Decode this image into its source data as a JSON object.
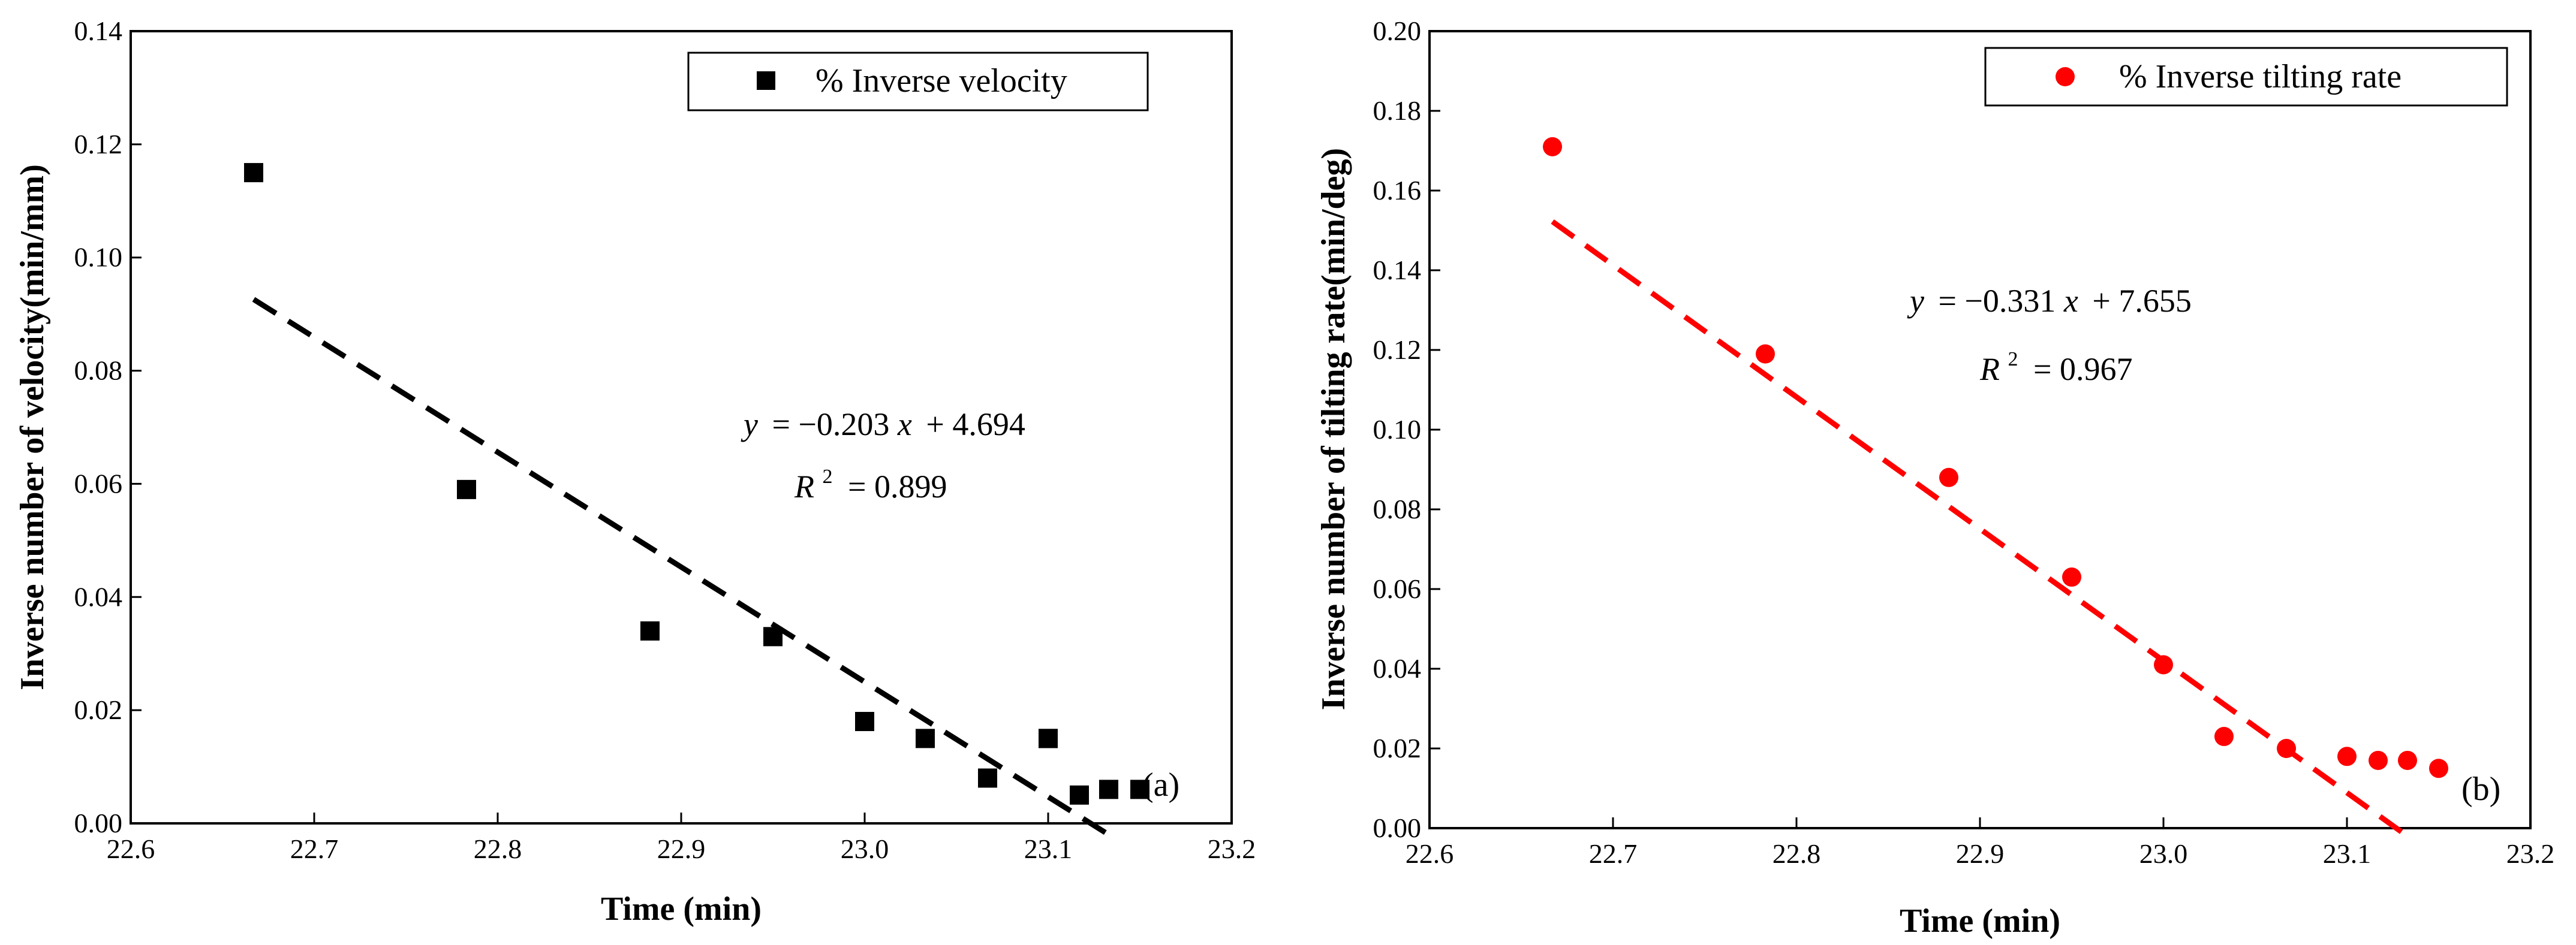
{
  "chart_data": [
    {
      "type": "scatter",
      "panel_label": "(a)",
      "xlabel": "Time (min)",
      "ylabel": "Inverse number of velocity(min/mm)",
      "xlim": [
        22.6,
        23.2
      ],
      "ylim": [
        0.0,
        0.14
      ],
      "xticks": [
        "22.6",
        "22.7",
        "22.8",
        "22.9",
        "23.0",
        "23.1",
        "23.2"
      ],
      "yticks": [
        "0.00",
        "0.02",
        "0.04",
        "0.06",
        "0.08",
        "0.10",
        "0.12",
        "0.14"
      ],
      "legend": {
        "label": "% Inverse velocity",
        "placement": "top-right"
      },
      "series": [
        {
          "name": "% Inverse velocity",
          "marker": "square",
          "color": "#000000",
          "x": [
            22.667,
            22.783,
            22.883,
            22.95,
            23.0,
            23.033,
            23.067,
            23.1,
            23.1,
            23.117,
            23.133,
            23.15
          ],
          "y": [
            0.115,
            0.059,
            0.034,
            0.033,
            0.018,
            0.015,
            0.008,
            0.015,
            0.015,
            0.005,
            0.006,
            0.006
          ]
        }
      ],
      "fit": {
        "slope": -0.203,
        "intercept": 4.694,
        "x_range": [
          22.667,
          23.133
        ],
        "color": "#000000",
        "equation": {
          "lhs": "y",
          "rhs_a": "= −0.203",
          "var": "x",
          "rhs_b": "+ 4.694"
        },
        "r2": {
          "label": "R",
          "sup": "2",
          "value": "= 0.899"
        }
      }
    },
    {
      "type": "scatter",
      "panel_label": "(b)",
      "xlabel": "Time (min)",
      "ylabel": "Inverse number of tilting rate(min/deg)",
      "xlim": [
        22.6,
        23.2
      ],
      "ylim": [
        0.0,
        0.2
      ],
      "xticks": [
        "22.6",
        "22.7",
        "22.8",
        "22.9",
        "23.0",
        "23.1",
        "23.2"
      ],
      "yticks": [
        "0.00",
        "0.02",
        "0.04",
        "0.06",
        "0.08",
        "0.10",
        "0.12",
        "0.14",
        "0.16",
        "0.18",
        "0.20"
      ],
      "legend": {
        "label": "% Inverse tilting rate",
        "placement": "top-right"
      },
      "series": [
        {
          "name": "% Inverse tilting rate",
          "marker": "circle",
          "color": "#ff0000",
          "x": [
            22.667,
            22.783,
            22.883,
            22.95,
            23.0,
            23.033,
            23.067,
            23.1,
            23.117,
            23.133,
            23.15
          ],
          "y": [
            0.171,
            0.119,
            0.088,
            0.063,
            0.041,
            0.023,
            0.02,
            0.018,
            0.017,
            0.017,
            0.015
          ]
        }
      ],
      "fit": {
        "slope": -0.331,
        "intercept": 7.655,
        "x_range": [
          22.667,
          23.133
        ],
        "color": "#ff0000",
        "equation": {
          "lhs": "y",
          "rhs_a": "= −0.331",
          "var": "x",
          "rhs_b": "+ 7.655"
        },
        "r2": {
          "label": "R",
          "sup": "2",
          "value": "= 0.967"
        }
      }
    }
  ]
}
